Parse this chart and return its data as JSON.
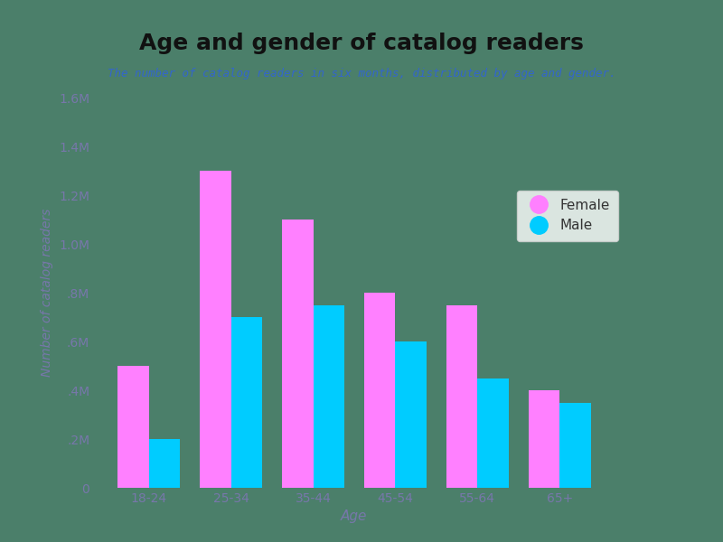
{
  "title": "Age and gender of catalog readers",
  "subtitle": "The number of catalog readers in six months, distributed by age and gender.",
  "xlabel": "Age",
  "ylabel": "Number of catalog readers",
  "categories": [
    "18-24",
    "25-34",
    "35-44",
    "45-54",
    "55-64",
    "65+"
  ],
  "female_values": [
    500000,
    1300000,
    1100000,
    800000,
    750000,
    400000
  ],
  "male_values": [
    200000,
    700000,
    750000,
    600000,
    450000,
    350000
  ],
  "female_color": "#FF80FF",
  "male_color": "#00CCFF",
  "background_color": "#4B7F6A",
  "title_color": "#111111",
  "subtitle_color": "#3366CC",
  "axis_label_color": "#7777AA",
  "tick_label_color": "#7777AA",
  "ylim": [
    0,
    1600000
  ],
  "ytick_step": 200000,
  "bar_width": 0.38,
  "legend_labels": [
    "Female",
    "Male"
  ]
}
